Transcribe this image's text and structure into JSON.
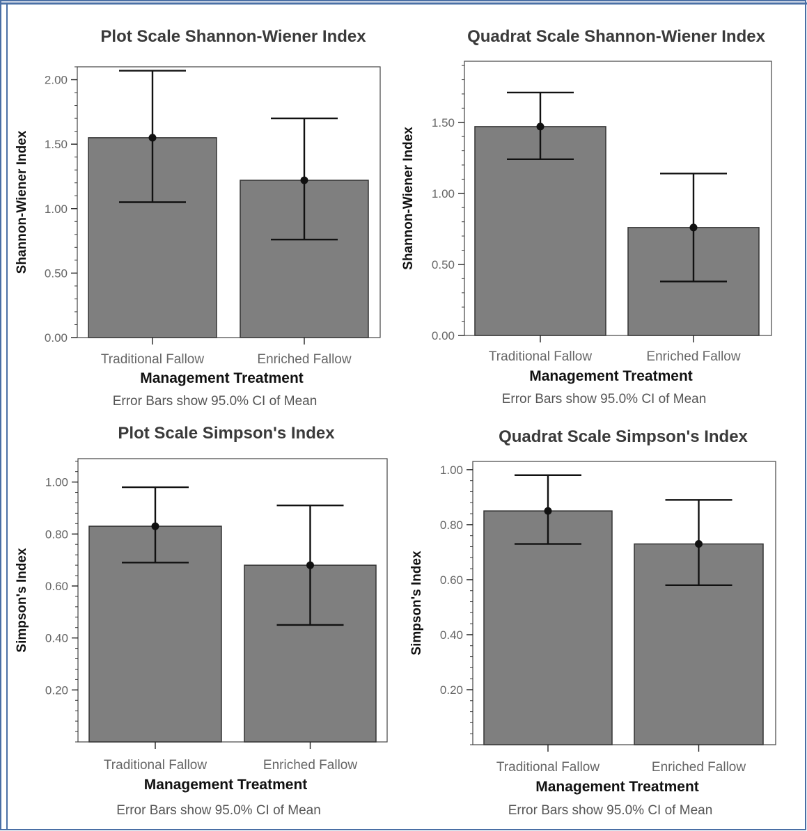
{
  "colors": {
    "bar_fill": "#7f7f7f",
    "bar_stroke": "#333333",
    "error_bar": "#111111",
    "frame_border": "#4a6fa5"
  },
  "chart_data": [
    {
      "type": "bar",
      "title": "Plot Scale Shannon-Wiener Index",
      "xlabel": "Management Treatment",
      "ylabel": "Shannon-Wiener Index",
      "note": "Error Bars show 95.0% CI of Mean",
      "categories": [
        "Traditional Fallow",
        "Enriched Fallow"
      ],
      "values": [
        1.55,
        1.22
      ],
      "ci_low": [
        1.05,
        0.76
      ],
      "ci_high": [
        2.07,
        1.7
      ],
      "ylim": [
        0,
        2.1
      ],
      "yticks": [
        0,
        0.5,
        1.0,
        1.5,
        2.0
      ],
      "ytick_labels": [
        "0.00",
        "0.50",
        "1.00",
        "1.50",
        "2.00"
      ],
      "grid": false
    },
    {
      "type": "bar",
      "title": "Quadrat Scale Shannon-Wiener Index",
      "xlabel": "Management Treatment",
      "ylabel": "Shannon-Wiener Index",
      "note": "Error Bars show 95.0% CI of Mean",
      "categories": [
        "Traditional Fallow",
        "Enriched Fallow"
      ],
      "values": [
        1.47,
        0.76
      ],
      "ci_low": [
        1.24,
        0.38
      ],
      "ci_high": [
        1.71,
        1.14
      ],
      "ylim": [
        0,
        1.93
      ],
      "yticks": [
        0,
        0.5,
        1.0,
        1.5
      ],
      "ytick_labels": [
        "0.00",
        "0.50",
        "1.00",
        "1.50"
      ],
      "grid": false
    },
    {
      "type": "bar",
      "title": "Plot Scale Simpson's Index",
      "xlabel": "Management Treatment",
      "ylabel": "Simpson's Index",
      "note": "Error Bars show 95.0% CI of Mean",
      "categories": [
        "Traditional Fallow",
        "Enriched Fallow"
      ],
      "values": [
        0.83,
        0.68
      ],
      "ci_low": [
        0.69,
        0.45
      ],
      "ci_high": [
        0.98,
        0.91
      ],
      "ylim": [
        0,
        1.09
      ],
      "yticks": [
        0.2,
        0.4,
        0.6,
        0.8,
        1.0
      ],
      "ytick_labels": [
        "0.20",
        "0.40",
        "0.60",
        "0.80",
        "1.00"
      ],
      "grid": false
    },
    {
      "type": "bar",
      "title": "Quadrat Scale Simpson's Index",
      "xlabel": "Management Treatment",
      "ylabel": "Simpson's Index",
      "note": "Error Bars show 95.0% CI of Mean",
      "categories": [
        "Traditional Fallow",
        "Enriched Fallow"
      ],
      "values": [
        0.85,
        0.73
      ],
      "ci_low": [
        0.73,
        0.58
      ],
      "ci_high": [
        0.98,
        0.89
      ],
      "ylim": [
        0,
        1.03
      ],
      "yticks": [
        0.2,
        0.4,
        0.6,
        0.8,
        1.0
      ],
      "ytick_labels": [
        "0.20",
        "0.40",
        "0.60",
        "0.80",
        "1.00"
      ],
      "grid": false
    }
  ]
}
